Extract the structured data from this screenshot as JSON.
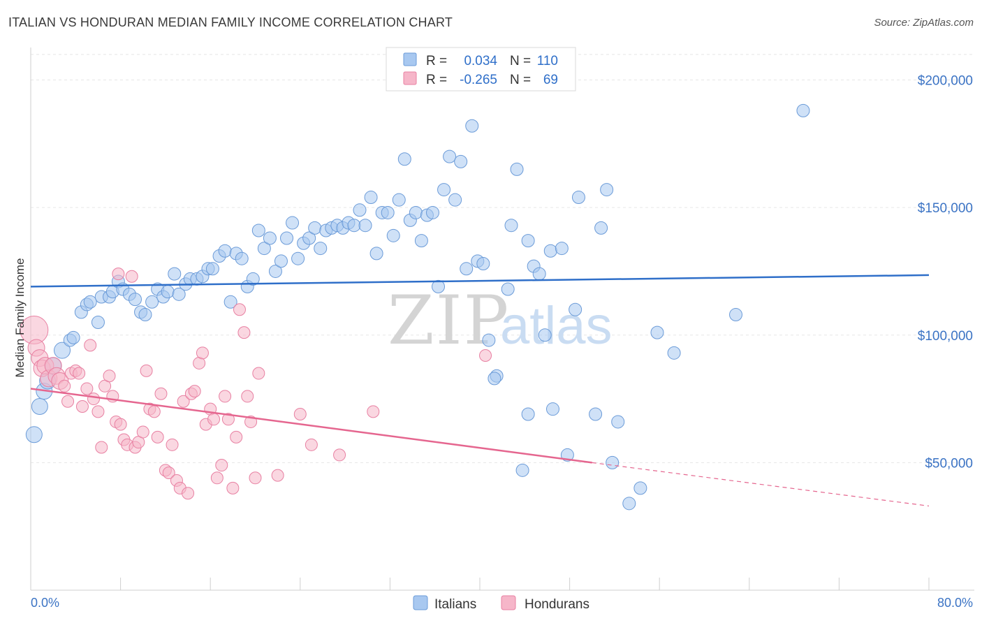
{
  "title": "ITALIAN VS HONDURAN MEDIAN FAMILY INCOME CORRELATION CHART",
  "source": "Source: ZipAtlas.com",
  "chart_data": {
    "type": "scatter",
    "ylabel": "Median Family Income",
    "xlabel": "",
    "xlim": [
      0,
      80
    ],
    "ylim": [
      0,
      210000
    ],
    "x_tick_labels": [
      "0.0%",
      "80.0%"
    ],
    "y_ticks": [
      50000,
      100000,
      150000,
      200000
    ],
    "y_tick_labels": [
      "$50,000",
      "$100,000",
      "$150,000",
      "$200,000"
    ],
    "grid": true,
    "watermark": {
      "zip": "ZIP",
      "atlas": "atlas"
    },
    "stats_legend": [
      {
        "r_label": "R =",
        "r_value": "0.034",
        "n_label": "N =",
        "n_value": "110",
        "color": "#a8c8f0"
      },
      {
        "r_label": "R =",
        "r_value": "-0.265",
        "n_label": "N =",
        "n_value": "69",
        "color": "#f6b6c9"
      }
    ],
    "series": [
      {
        "name": "Italians",
        "color": "#a8c8f0",
        "edge": "#6b9bd8",
        "trend": {
          "x": [
            0,
            80
          ],
          "y": [
            119000,
            123500
          ],
          "color": "#2f6fc9"
        },
        "points": [
          [
            0.3,
            61000
          ],
          [
            0.8,
            72000
          ],
          [
            1.2,
            78000
          ],
          [
            1.5,
            82000
          ],
          [
            2.0,
            88000
          ],
          [
            2.8,
            94000
          ],
          [
            3.5,
            98000
          ],
          [
            3.8,
            99000
          ],
          [
            4.5,
            109000
          ],
          [
            5.0,
            112000
          ],
          [
            5.3,
            113000
          ],
          [
            6.0,
            105000
          ],
          [
            6.3,
            115000
          ],
          [
            7.0,
            115000
          ],
          [
            7.3,
            117000
          ],
          [
            7.8,
            121000
          ],
          [
            8.2,
            118000
          ],
          [
            8.8,
            116000
          ],
          [
            9.3,
            114000
          ],
          [
            9.8,
            109000
          ],
          [
            10.2,
            108000
          ],
          [
            10.8,
            113000
          ],
          [
            11.3,
            118000
          ],
          [
            11.8,
            115000
          ],
          [
            12.2,
            117000
          ],
          [
            12.8,
            124000
          ],
          [
            13.2,
            116000
          ],
          [
            13.8,
            120000
          ],
          [
            14.2,
            122000
          ],
          [
            14.8,
            122000
          ],
          [
            15.3,
            123000
          ],
          [
            15.8,
            126000
          ],
          [
            16.2,
            126000
          ],
          [
            16.8,
            131000
          ],
          [
            17.3,
            133000
          ],
          [
            17.8,
            113000
          ],
          [
            18.3,
            132000
          ],
          [
            18.8,
            130000
          ],
          [
            19.3,
            119000
          ],
          [
            19.8,
            122000
          ],
          [
            20.3,
            141000
          ],
          [
            20.8,
            134000
          ],
          [
            21.3,
            138000
          ],
          [
            21.8,
            125000
          ],
          [
            22.3,
            129000
          ],
          [
            22.8,
            138000
          ],
          [
            23.3,
            144000
          ],
          [
            23.8,
            130000
          ],
          [
            24.3,
            136000
          ],
          [
            24.8,
            138000
          ],
          [
            25.3,
            142000
          ],
          [
            25.8,
            134000
          ],
          [
            26.3,
            141000
          ],
          [
            26.8,
            142000
          ],
          [
            27.3,
            143000
          ],
          [
            27.8,
            142000
          ],
          [
            28.3,
            144000
          ],
          [
            28.8,
            143000
          ],
          [
            29.3,
            149000
          ],
          [
            29.8,
            143000
          ],
          [
            30.3,
            154000
          ],
          [
            30.8,
            132000
          ],
          [
            31.3,
            148000
          ],
          [
            31.8,
            148000
          ],
          [
            32.3,
            139000
          ],
          [
            32.8,
            153000
          ],
          [
            33.3,
            169000
          ],
          [
            33.8,
            145000
          ],
          [
            34.3,
            148000
          ],
          [
            34.8,
            137000
          ],
          [
            35.3,
            147000
          ],
          [
            35.8,
            148000
          ],
          [
            36.3,
            119000
          ],
          [
            36.8,
            157000
          ],
          [
            37.3,
            170000
          ],
          [
            37.8,
            153000
          ],
          [
            38.3,
            168000
          ],
          [
            38.8,
            126000
          ],
          [
            39.3,
            182000
          ],
          [
            39.8,
            129000
          ],
          [
            40.3,
            128000
          ],
          [
            40.8,
            98000
          ],
          [
            41.5,
            84000
          ],
          [
            41.3,
            83000
          ],
          [
            42.5,
            118000
          ],
          [
            42.8,
            143000
          ],
          [
            43.3,
            165000
          ],
          [
            43.8,
            47000
          ],
          [
            44.3,
            137000
          ],
          [
            44.8,
            127000
          ],
          [
            45.3,
            124000
          ],
          [
            46.3,
            133000
          ],
          [
            47.3,
            134000
          ],
          [
            46.5,
            71000
          ],
          [
            48.5,
            110000
          ],
          [
            48.8,
            154000
          ],
          [
            50.8,
            142000
          ],
          [
            51.3,
            157000
          ],
          [
            50.3,
            69000
          ],
          [
            52.3,
            66000
          ],
          [
            55.8,
            101000
          ],
          [
            57.3,
            93000
          ],
          [
            62.8,
            108000
          ],
          [
            68.8,
            188000
          ],
          [
            53.3,
            34000
          ],
          [
            51.8,
            50000
          ],
          [
            54.3,
            40000
          ],
          [
            47.8,
            53000
          ],
          [
            45.8,
            100000
          ],
          [
            44.3,
            69000
          ]
        ]
      },
      {
        "name": "Hondurans",
        "color": "#f6b6c9",
        "edge": "#e880a2",
        "trend": {
          "x": [
            0,
            50
          ],
          "y": [
            79000,
            50000
          ],
          "dash_to": [
            80,
            33000
          ],
          "color": "#e5668f"
        },
        "points": [
          [
            0.3,
            102000
          ],
          [
            0.5,
            95000
          ],
          [
            0.8,
            91000
          ],
          [
            1.0,
            87000
          ],
          [
            1.3,
            88000
          ],
          [
            1.6,
            83000
          ],
          [
            2.0,
            88000
          ],
          [
            2.3,
            84000
          ],
          [
            2.6,
            82000
          ],
          [
            3.0,
            80000
          ],
          [
            3.3,
            74000
          ],
          [
            3.6,
            85000
          ],
          [
            4.0,
            86000
          ],
          [
            4.3,
            85000
          ],
          [
            4.6,
            72000
          ],
          [
            5.0,
            79000
          ],
          [
            5.3,
            96000
          ],
          [
            5.6,
            75000
          ],
          [
            6.0,
            70000
          ],
          [
            6.3,
            56000
          ],
          [
            6.6,
            80000
          ],
          [
            7.0,
            84000
          ],
          [
            7.3,
            76000
          ],
          [
            7.6,
            66000
          ],
          [
            8.0,
            65000
          ],
          [
            8.3,
            59000
          ],
          [
            8.6,
            57000
          ],
          [
            9.0,
            123000
          ],
          [
            9.3,
            56000
          ],
          [
            9.6,
            58000
          ],
          [
            10.0,
            62000
          ],
          [
            10.3,
            86000
          ],
          [
            10.6,
            71000
          ],
          [
            11.0,
            70000
          ],
          [
            11.3,
            60000
          ],
          [
            11.6,
            77000
          ],
          [
            12.0,
            47000
          ],
          [
            12.3,
            46000
          ],
          [
            12.6,
            57000
          ],
          [
            13.0,
            43000
          ],
          [
            13.3,
            40000
          ],
          [
            13.6,
            74000
          ],
          [
            14.0,
            38000
          ],
          [
            14.3,
            77000
          ],
          [
            14.6,
            78000
          ],
          [
            15.0,
            89000
          ],
          [
            15.3,
            93000
          ],
          [
            15.6,
            65000
          ],
          [
            16.0,
            71000
          ],
          [
            16.3,
            67000
          ],
          [
            16.6,
            44000
          ],
          [
            17.0,
            49000
          ],
          [
            17.3,
            76000
          ],
          [
            17.6,
            67000
          ],
          [
            18.0,
            40000
          ],
          [
            18.3,
            60000
          ],
          [
            18.6,
            110000
          ],
          [
            19.0,
            101000
          ],
          [
            19.3,
            76000
          ],
          [
            19.6,
            66000
          ],
          [
            20.0,
            44000
          ],
          [
            20.3,
            85000
          ],
          [
            22.0,
            45000
          ],
          [
            24.0,
            69000
          ],
          [
            25.0,
            57000
          ],
          [
            27.5,
            53000
          ],
          [
            30.5,
            70000
          ],
          [
            40.5,
            92000
          ],
          [
            7.8,
            124000
          ]
        ]
      }
    ]
  }
}
